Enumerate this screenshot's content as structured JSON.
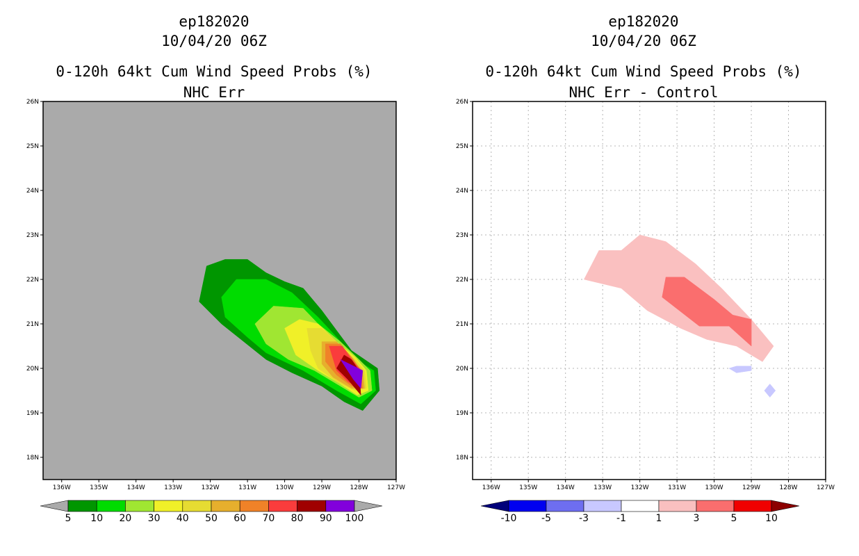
{
  "chart_data": [
    {
      "type": "contour_map",
      "title_lines": [
        "ep182020",
        "10/04/20 06Z",
        "0-120h 64kt Cum Wind Speed Probs (%)",
        "NHC Err"
      ],
      "x_ticks": [
        "136W",
        "135W",
        "134W",
        "133W",
        "132W",
        "131W",
        "130W",
        "129W",
        "128W",
        "127W"
      ],
      "y_ticks": [
        "26N",
        "25N",
        "24N",
        "23N",
        "22N",
        "21N",
        "20N",
        "19N",
        "18N"
      ],
      "lon_range": [
        -136.5,
        -127
      ],
      "lat_range": [
        17.5,
        26
      ],
      "background": "#aaaaaa",
      "colorbar": {
        "labels": [
          "5",
          "10",
          "20",
          "30",
          "40",
          "50",
          "60",
          "70",
          "80",
          "90",
          "100"
        ],
        "colors": [
          "#009600",
          "#00dc00",
          "#a0e632",
          "#f0f028",
          "#e6dc32",
          "#e6af2d",
          "#f08228",
          "#fa3c3c",
          "#a00000",
          "#8200dc"
        ],
        "under_color": "#aaaaaa",
        "over_color": "#aaaaaa"
      },
      "contours": [
        {
          "level": 5,
          "color": "#009600",
          "points": [
            [
              -132.3,
              21.5
            ],
            [
              -132.1,
              22.3
            ],
            [
              -131.6,
              22.45
            ],
            [
              -131.0,
              22.45
            ],
            [
              -130.5,
              22.15
            ],
            [
              -130.0,
              21.95
            ],
            [
              -129.5,
              21.8
            ],
            [
              -129.0,
              21.3
            ],
            [
              -128.6,
              20.85
            ],
            [
              -128.2,
              20.4
            ],
            [
              -127.5,
              20.0
            ],
            [
              -127.45,
              19.5
            ],
            [
              -127.9,
              19.05
            ],
            [
              -128.4,
              19.25
            ],
            [
              -129.0,
              19.6
            ],
            [
              -129.8,
              19.9
            ],
            [
              -130.5,
              20.2
            ],
            [
              -131.1,
              20.6
            ],
            [
              -131.7,
              21.0
            ],
            [
              -132.3,
              21.5
            ]
          ]
        },
        {
          "level": 10,
          "color": "#00dc00",
          "points": [
            [
              -131.7,
              21.6
            ],
            [
              -131.3,
              22.0
            ],
            [
              -130.5,
              22.0
            ],
            [
              -129.8,
              21.7
            ],
            [
              -129.1,
              21.15
            ],
            [
              -128.6,
              20.7
            ],
            [
              -128.1,
              20.2
            ],
            [
              -127.6,
              19.95
            ],
            [
              -127.55,
              19.5
            ],
            [
              -127.95,
              19.2
            ],
            [
              -128.6,
              19.5
            ],
            [
              -129.5,
              19.95
            ],
            [
              -130.5,
              20.35
            ],
            [
              -131.0,
              20.7
            ],
            [
              -131.6,
              21.15
            ],
            [
              -131.7,
              21.6
            ]
          ]
        },
        {
          "level": 20,
          "color": "#a0e632",
          "points": [
            [
              -130.8,
              21.0
            ],
            [
              -130.3,
              21.4
            ],
            [
              -129.5,
              21.35
            ],
            [
              -129.1,
              21.0
            ],
            [
              -128.5,
              20.6
            ],
            [
              -128.0,
              20.2
            ],
            [
              -127.7,
              19.95
            ],
            [
              -127.65,
              19.5
            ],
            [
              -128.0,
              19.35
            ],
            [
              -128.5,
              19.6
            ],
            [
              -129.2,
              19.95
            ],
            [
              -129.9,
              20.2
            ],
            [
              -130.5,
              20.55
            ],
            [
              -130.8,
              21.0
            ]
          ]
        },
        {
          "level": 30,
          "color": "#f0f028",
          "points": [
            [
              -130.0,
              20.9
            ],
            [
              -129.6,
              21.1
            ],
            [
              -129.1,
              21.0
            ],
            [
              -128.6,
              20.6
            ],
            [
              -128.1,
              20.25
            ],
            [
              -127.8,
              19.95
            ],
            [
              -127.75,
              19.5
            ],
            [
              -128.05,
              19.4
            ],
            [
              -128.5,
              19.65
            ],
            [
              -129.1,
              19.95
            ],
            [
              -129.7,
              20.3
            ],
            [
              -130.0,
              20.9
            ]
          ]
        },
        {
          "level": 40,
          "color": "#e6dc32",
          "points": [
            [
              -129.4,
              20.9
            ],
            [
              -129.0,
              20.9
            ],
            [
              -128.6,
              20.6
            ],
            [
              -128.1,
              20.2
            ],
            [
              -127.85,
              19.95
            ],
            [
              -127.8,
              19.55
            ],
            [
              -128.1,
              19.5
            ],
            [
              -128.6,
              19.7
            ],
            [
              -129.1,
              20.0
            ],
            [
              -129.3,
              20.4
            ],
            [
              -129.4,
              20.9
            ]
          ]
        },
        {
          "level": 50,
          "color": "#e6af2d",
          "points": [
            [
              -129.0,
              20.6
            ],
            [
              -128.6,
              20.6
            ],
            [
              -128.2,
              20.2
            ],
            [
              -127.9,
              19.95
            ],
            [
              -127.85,
              19.55
            ],
            [
              -128.2,
              19.55
            ],
            [
              -128.7,
              19.8
            ],
            [
              -129.0,
              20.1
            ],
            [
              -129.0,
              20.6
            ]
          ]
        },
        {
          "level": 60,
          "color": "#f08228",
          "points": [
            [
              -128.9,
              20.55
            ],
            [
              -128.5,
              20.55
            ],
            [
              -128.15,
              20.2
            ],
            [
              -127.95,
              19.95
            ],
            [
              -127.9,
              19.55
            ],
            [
              -128.2,
              19.6
            ],
            [
              -128.6,
              19.85
            ],
            [
              -128.9,
              20.15
            ],
            [
              -128.9,
              20.55
            ]
          ]
        },
        {
          "level": 70,
          "color": "#fa3c3c",
          "points": [
            [
              -128.8,
              20.5
            ],
            [
              -128.45,
              20.5
            ],
            [
              -128.2,
              20.2
            ],
            [
              -127.95,
              19.95
            ],
            [
              -127.95,
              19.55
            ],
            [
              -128.3,
              19.7
            ],
            [
              -128.6,
              19.95
            ],
            [
              -128.8,
              20.5
            ]
          ]
        },
        {
          "level": 80,
          "color": "#a00000",
          "points": [
            [
              -128.6,
              20.0
            ],
            [
              -128.4,
              20.3
            ],
            [
              -128.2,
              20.2
            ],
            [
              -128.0,
              19.95
            ],
            [
              -127.95,
              19.4
            ],
            [
              -128.3,
              19.75
            ],
            [
              -128.6,
              20.0
            ]
          ]
        },
        {
          "level": 90,
          "color": "#8200dc",
          "points": [
            [
              -128.5,
              20.2
            ],
            [
              -127.9,
              19.95
            ],
            [
              -127.95,
              19.55
            ],
            [
              -128.15,
              19.75
            ],
            [
              -128.5,
              20.2
            ]
          ]
        }
      ]
    },
    {
      "type": "contour_map",
      "title_lines": [
        "ep182020",
        "10/04/20 06Z",
        "0-120h 64kt Cum Wind Speed Probs (%)",
        "NHC Err - Control"
      ],
      "x_ticks": [
        "136W",
        "135W",
        "134W",
        "133W",
        "132W",
        "131W",
        "130W",
        "129W",
        "128W",
        "127W"
      ],
      "y_ticks": [
        "26N",
        "25N",
        "24N",
        "23N",
        "22N",
        "21N",
        "20N",
        "19N",
        "18N"
      ],
      "lon_range": [
        -136.5,
        -127
      ],
      "lat_range": [
        17.5,
        26
      ],
      "background": "#ffffff",
      "grid": true,
      "colorbar": {
        "labels": [
          "-10",
          "-5",
          "-3",
          "-1",
          "1",
          "3",
          "5",
          "10"
        ],
        "colors": [
          "#0000f0",
          "#6e6ef0",
          "#c8c8ff",
          "#ffffff",
          "#fac0c0",
          "#fa6e6e",
          "#f00000"
        ],
        "under_color": "#00007a",
        "over_color": "#8c0000"
      },
      "contours": [
        {
          "level": 1,
          "color": "#fac0c0",
          "points": [
            [
              -133.5,
              22.0
            ],
            [
              -133.1,
              22.65
            ],
            [
              -132.5,
              22.65
            ],
            [
              -132.0,
              23.0
            ],
            [
              -131.3,
              22.85
            ],
            [
              -130.5,
              22.35
            ],
            [
              -129.8,
              21.8
            ],
            [
              -129.0,
              21.1
            ],
            [
              -128.4,
              20.5
            ],
            [
              -128.7,
              20.15
            ],
            [
              -129.4,
              20.5
            ],
            [
              -130.2,
              20.65
            ],
            [
              -130.9,
              20.9
            ],
            [
              -131.8,
              21.3
            ],
            [
              -132.5,
              21.8
            ],
            [
              -133.5,
              22.0
            ]
          ]
        },
        {
          "level": 3,
          "color": "#fa6e6e",
          "points": [
            [
              -131.4,
              21.6
            ],
            [
              -131.3,
              22.05
            ],
            [
              -130.8,
              22.05
            ],
            [
              -130.0,
              21.55
            ],
            [
              -129.5,
              21.2
            ],
            [
              -129.0,
              21.1
            ],
            [
              -129.0,
              20.5
            ],
            [
              -129.6,
              20.95
            ],
            [
              -130.4,
              20.95
            ],
            [
              -131.4,
              21.6
            ]
          ]
        },
        {
          "level": -3,
          "color": "#c8c8ff",
          "points": [
            [
              -129.6,
              20.0
            ],
            [
              -129.4,
              20.05
            ],
            [
              -129.0,
              20.05
            ],
            [
              -129.0,
              19.95
            ],
            [
              -129.4,
              19.9
            ],
            [
              -129.6,
              20.0
            ]
          ]
        },
        {
          "level": -3,
          "color": "#c8c8ff",
          "points": [
            [
              -128.65,
              19.5
            ],
            [
              -128.5,
              19.65
            ],
            [
              -128.35,
              19.5
            ],
            [
              -128.5,
              19.35
            ],
            [
              -128.65,
              19.5
            ]
          ]
        }
      ]
    }
  ]
}
